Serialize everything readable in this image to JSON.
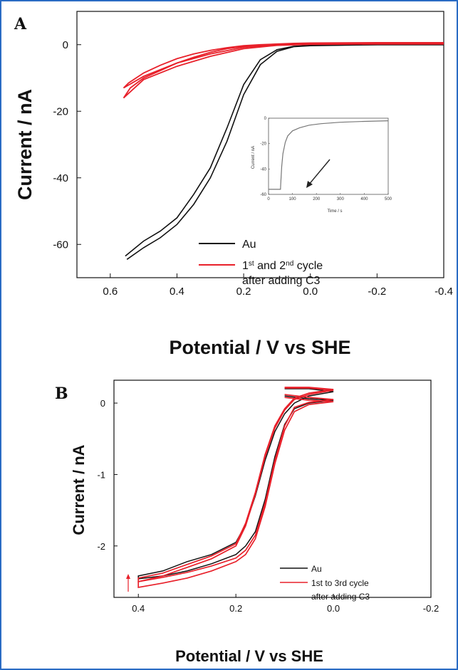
{
  "chart_data": [
    {
      "panel": "A",
      "type": "line",
      "xlabel": "Potential / V vs SHE",
      "ylabel": "Current / nA",
      "xlim": [
        0.7,
        -0.4
      ],
      "ylim": [
        -70,
        10
      ],
      "x_ticks": [
        0.6,
        0.4,
        0.2,
        0.0,
        -0.2,
        -0.4
      ],
      "x_tick_labels": [
        "0.6",
        "0.4",
        "0.2",
        "0.0",
        "-0.2",
        "-0.4"
      ],
      "y_ticks": [
        0,
        -20,
        -40,
        -60
      ],
      "y_tick_labels": [
        "0",
        "-20",
        "-40",
        "-60"
      ],
      "legend_position": "lower-center",
      "series": [
        {
          "name": "Au",
          "color": "#111111",
          "forward": {
            "x": [
              -0.4,
              -0.2,
              0.0,
              0.05,
              0.1,
              0.15,
              0.2,
              0.25,
              0.3,
              0.35,
              0.4,
              0.45,
              0.5,
              0.55
            ],
            "y": [
              0,
              0,
              -0.3,
              -0.6,
              -2,
              -6,
              -15,
              -29,
              -40,
              -48,
              -54,
              -58,
              -61,
              -64.5
            ]
          },
          "reverse": {
            "x": [
              0.555,
              0.5,
              0.45,
              0.4,
              0.35,
              0.3,
              0.25,
              0.2,
              0.15,
              0.1,
              0.05,
              0.0,
              -0.2,
              -0.4
            ],
            "y": [
              -63.5,
              -59,
              -56,
              -52,
              -45,
              -37,
              -25,
              -12,
              -4.5,
              -1.5,
              -0.5,
              -0.2,
              0,
              0
            ]
          }
        },
        {
          "name": "1st and 2nd cycle after adding C3",
          "legend_line1": "1",
          "legend_line1_sup": "st",
          "legend_line1_mid": " and 2",
          "legend_line1_sup2": "nd",
          "legend_line1_end": " cycle",
          "legend_line2": "after adding C3",
          "color": "#e8202a",
          "loops": [
            {
              "x": [
                -0.4,
                -0.2,
                0.0,
                0.1,
                0.2,
                0.3,
                0.4,
                0.5,
                0.56,
                0.54,
                0.5,
                0.45,
                0.4,
                0.35,
                0.3,
                0.25,
                0.2,
                0.15,
                0.1,
                0.05,
                0.0,
                -0.2,
                -0.4
              ],
              "y": [
                0.2,
                0.2,
                0.1,
                -0.2,
                -1.2,
                -3.5,
                -6.5,
                -10.5,
                -16,
                -13,
                -10,
                -7.8,
                -5.5,
                -3.8,
                -2.3,
                -1.2,
                -0.5,
                -0.2,
                0.1,
                0.3,
                0.4,
                0.5,
                0.5
              ]
            },
            {
              "x": [
                -0.4,
                -0.2,
                0.0,
                0.1,
                0.2,
                0.3,
                0.4,
                0.5,
                0.56,
                0.545,
                0.5,
                0.45,
                0.4,
                0.35,
                0.3,
                0.25,
                0.2,
                0.15,
                0.1,
                0.05,
                0.0,
                -0.2,
                -0.4
              ],
              "y": [
                0.3,
                0.3,
                0.2,
                0.0,
                -0.8,
                -2.8,
                -5.5,
                -9.5,
                -13,
                -11.5,
                -8.5,
                -6.2,
                -4.2,
                -2.8,
                -1.7,
                -0.9,
                -0.3,
                0.0,
                0.2,
                0.4,
                0.5,
                0.6,
                0.6
              ]
            }
          ]
        }
      ],
      "inset": {
        "xlabel": "Time / s",
        "ylabel": "Current / nA",
        "xlim": [
          0,
          500
        ],
        "ylim": [
          -60,
          0
        ],
        "x_tick_labels": [
          "0",
          "100",
          "200",
          "300",
          "400",
          "500"
        ],
        "y_tick_labels": [
          "0",
          "-20",
          "-40",
          "-60"
        ],
        "series": {
          "color": "#777777",
          "x": [
            0,
            50,
            51,
            55,
            60,
            70,
            80,
            100,
            130,
            170,
            220,
            300,
            400,
            500
          ],
          "y": [
            -56,
            -56,
            -52,
            -38,
            -28,
            -19,
            -14,
            -10,
            -7.5,
            -5.5,
            -4.3,
            -3.2,
            -2.5,
            -2
          ]
        }
      }
    },
    {
      "panel": "B",
      "type": "line",
      "xlabel": "Potential / V vs SHE",
      "ylabel": "Current / nA",
      "xlim": [
        0.45,
        -0.2
      ],
      "ylim": [
        -2.72,
        0.32
      ],
      "x_ticks": [
        0.4,
        0.2,
        0.0,
        -0.2
      ],
      "x_tick_labels": [
        "0.4",
        "0.2",
        "0.0",
        "-0.2"
      ],
      "y_ticks": [
        0,
        -1,
        -2
      ],
      "y_tick_labels": [
        "0",
        "-1",
        "-2"
      ],
      "legend_position": "lower-right",
      "series": [
        {
          "name": "Au",
          "color": "#111111",
          "loops": [
            {
              "x": [
                0.1,
                0.05,
                0.0,
                0.05,
                0.08,
                0.1,
                0.12,
                0.14,
                0.16,
                0.18,
                0.2,
                0.25,
                0.3,
                0.35,
                0.4,
                0.4,
                0.35,
                0.3,
                0.25,
                0.2,
                0.18,
                0.16,
                0.14,
                0.12,
                0.1,
                0.08,
                0.05,
                0.0,
                0.05,
                0.1
              ],
              "y": [
                0.1,
                0.06,
                0.04,
                0.0,
                -0.08,
                -0.3,
                -0.75,
                -1.35,
                -1.8,
                -2.0,
                -2.12,
                -2.25,
                -2.35,
                -2.42,
                -2.46,
                -2.42,
                -2.35,
                -2.22,
                -2.12,
                -1.95,
                -1.7,
                -1.3,
                -0.8,
                -0.4,
                -0.15,
                0.0,
                0.1,
                0.16,
                0.2,
                0.2
              ]
            }
          ]
        },
        {
          "name": "1st to 3rd cycle after adding C3",
          "legend_line1": "1st to 3rd cycle",
          "legend_line2": "after adding C3",
          "color": "#e8202a",
          "loops": [
            {
              "x": [
                0.1,
                0.05,
                0.0,
                0.05,
                0.08,
                0.1,
                0.12,
                0.14,
                0.16,
                0.18,
                0.2,
                0.25,
                0.3,
                0.35,
                0.4,
                0.4,
                0.35,
                0.3,
                0.25,
                0.2,
                0.18,
                0.16,
                0.14,
                0.12,
                0.1,
                0.08,
                0.05,
                0.0,
                0.05,
                0.1
              ],
              "y": [
                0.08,
                0.04,
                0.02,
                -0.02,
                -0.12,
                -0.38,
                -0.85,
                -1.45,
                -1.9,
                -2.12,
                -2.22,
                -2.35,
                -2.45,
                -2.52,
                -2.58,
                -2.5,
                -2.42,
                -2.3,
                -2.18,
                -2.0,
                -1.72,
                -1.28,
                -0.75,
                -0.35,
                -0.1,
                0.05,
                0.12,
                0.18,
                0.21,
                0.21
              ]
            },
            {
              "x": [
                0.1,
                0.05,
                0.0,
                0.05,
                0.08,
                0.1,
                0.12,
                0.14,
                0.16,
                0.18,
                0.2,
                0.25,
                0.3,
                0.35,
                0.4,
                0.4,
                0.35,
                0.3,
                0.25,
                0.2,
                0.18,
                0.16,
                0.14,
                0.12,
                0.1,
                0.08,
                0.05,
                0.0,
                0.05,
                0.1
              ],
              "y": [
                0.12,
                0.08,
                0.05,
                0.01,
                -0.06,
                -0.32,
                -0.8,
                -1.4,
                -1.85,
                -2.06,
                -2.17,
                -2.28,
                -2.37,
                -2.44,
                -2.5,
                -2.45,
                -2.38,
                -2.26,
                -2.14,
                -1.97,
                -1.68,
                -1.25,
                -0.72,
                -0.32,
                -0.08,
                0.07,
                0.14,
                0.19,
                0.22,
                0.22
              ]
            }
          ]
        }
      ]
    }
  ],
  "panels": {
    "a_label": "A",
    "b_label": "B"
  }
}
